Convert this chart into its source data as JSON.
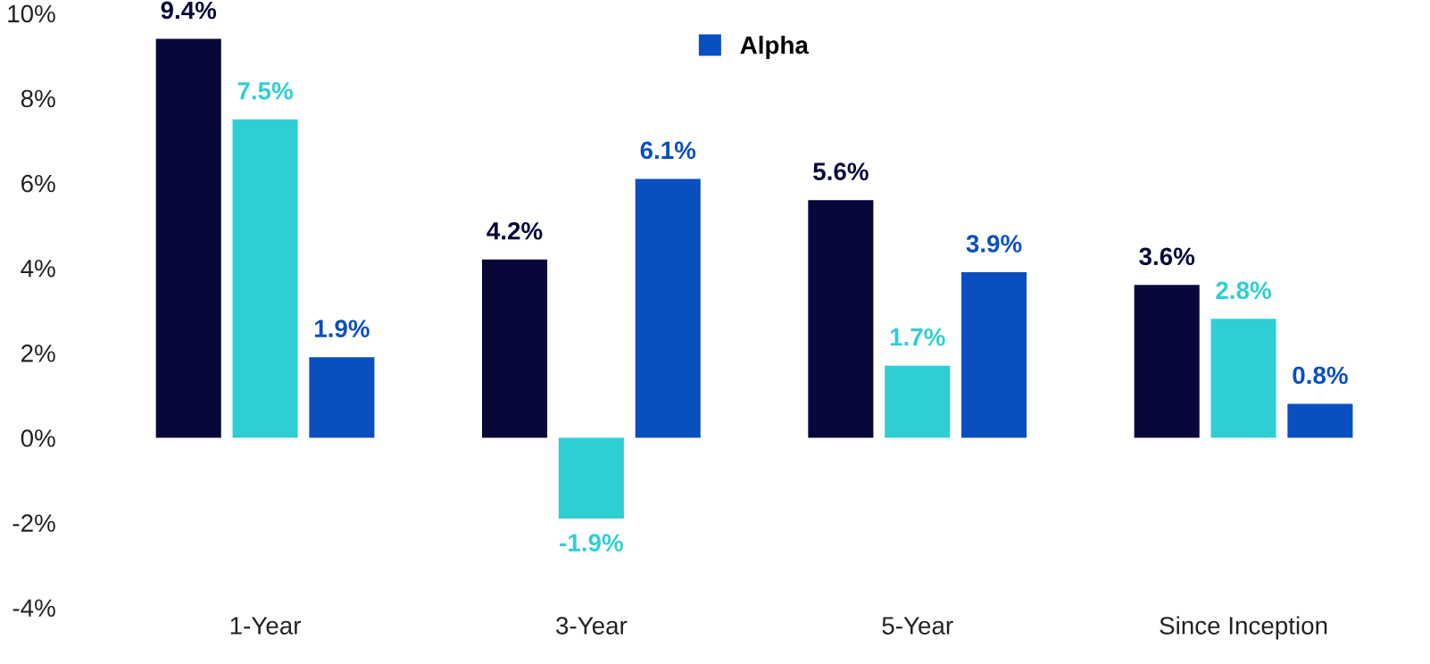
{
  "chart_data": {
    "type": "bar",
    "categories": [
      "1-Year",
      "3-Year",
      "5-Year",
      "Since Inception"
    ],
    "series": [
      {
        "color": "#07073a",
        "values": [
          9.4,
          4.2,
          5.6,
          3.6
        ],
        "value_labels": [
          "9.4%",
          "4.2%",
          "5.6%",
          "3.6%"
        ]
      },
      {
        "color": "#2ecfd3",
        "values": [
          7.5,
          -1.9,
          1.7,
          2.8
        ],
        "value_labels": [
          "7.5%",
          "-1.9%",
          "1.7%",
          "2.8%"
        ]
      },
      {
        "name": "Alpha",
        "color": "#0a4fc0",
        "values": [
          1.9,
          6.1,
          3.9,
          0.8
        ],
        "value_labels": [
          "1.9%",
          "6.1%",
          "3.9%",
          "0.8%"
        ]
      }
    ],
    "ylim": [
      -4,
      10
    ],
    "yticks": [
      {
        "value": -4,
        "label": "-4%"
      },
      {
        "value": -2,
        "label": "-2%"
      },
      {
        "value": 0,
        "label": "0%"
      },
      {
        "value": 2,
        "label": "2%"
      },
      {
        "value": 4,
        "label": "4%"
      },
      {
        "value": 6,
        "label": "6%"
      },
      {
        "value": 8,
        "label": "8%"
      },
      {
        "value": 10,
        "label": "10%"
      }
    ],
    "grid": false,
    "legend": "top"
  }
}
